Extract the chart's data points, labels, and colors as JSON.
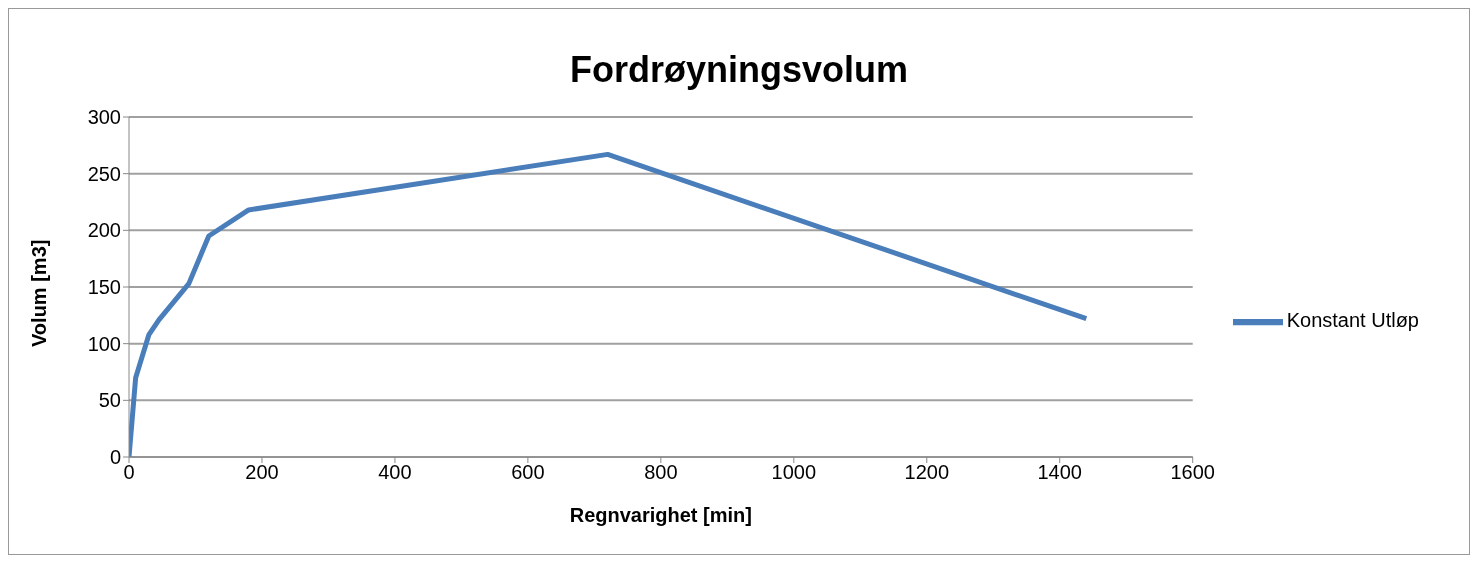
{
  "chart_data": {
    "type": "line",
    "title": "Fordrøyningsvolum",
    "xlabel": "Regnvarighet [min]",
    "ylabel": "Volum [m3]",
    "x": [
      0,
      10,
      30,
      45,
      90,
      120,
      180,
      720,
      1440
    ],
    "series": [
      {
        "name": "Konstant Utløp",
        "color": "#4a7ebb",
        "values": [
          0,
          70,
          108,
          121,
          153,
          195,
          218,
          267,
          122
        ]
      }
    ],
    "xlim": [
      0,
      1600
    ],
    "xticks": [
      0,
      200,
      400,
      600,
      800,
      1000,
      1200,
      1400,
      1600
    ],
    "ylim": [
      0,
      300
    ],
    "yticks": [
      0,
      50,
      100,
      150,
      200,
      250,
      300
    ],
    "grid": "y",
    "legend": "right",
    "marker": "none",
    "line_style": "solid"
  }
}
